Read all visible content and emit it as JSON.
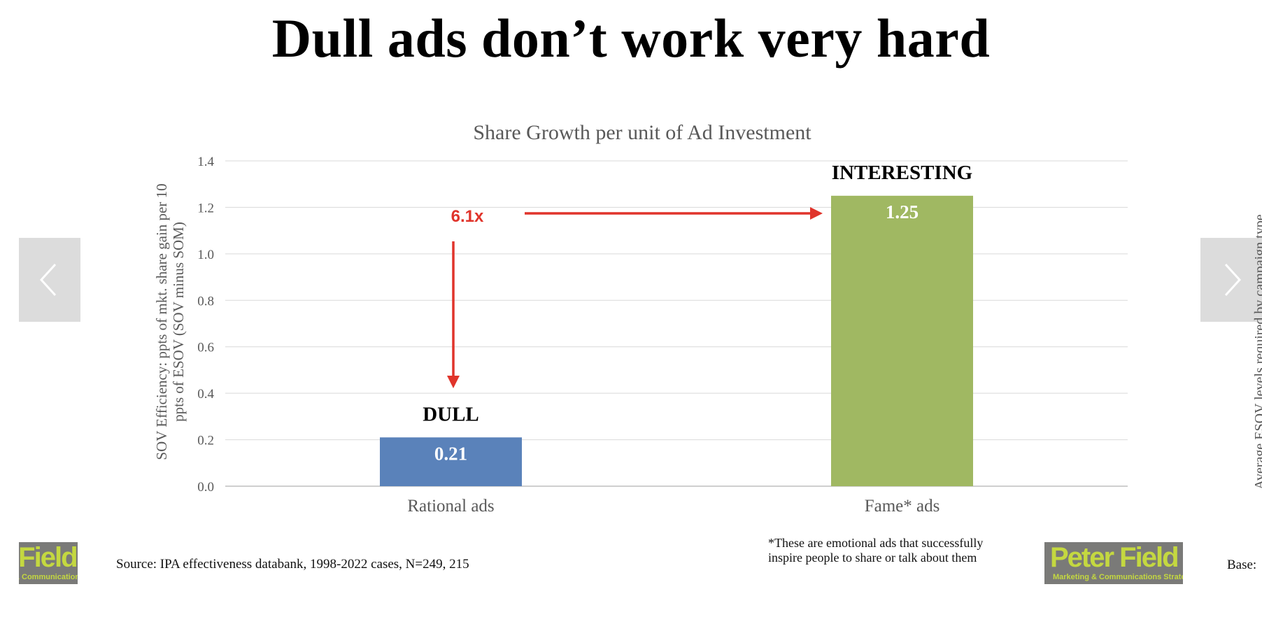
{
  "slide": {
    "title": "Dull ads don’t work very hard",
    "source": "Source: IPA effectiveness databank, 1998-2022 cases, N=249, 215",
    "footnote_line1": "*These are emotional ads that successfully",
    "footnote_line2": "inspire people to share or talk about them",
    "base_label": "Base:",
    "side_text": "Average ESOV levels required by campaign type"
  },
  "navigation": {
    "prev_icon": "chevron-left-icon",
    "next_icon": "chevron-right-icon"
  },
  "logos": {
    "left_name": "Peter Field",
    "left_tagline": "Marketing & Communications Strategy",
    "right_name": "Peter Field",
    "right_tagline": "Marketing & Communications Strategy"
  },
  "chart_data": {
    "type": "bar",
    "title": "Share Growth per unit of Ad Investment",
    "xlabel": "",
    "ylabel": "SOV Efficiency: ppts of mkt. share gain per 10 ppts of ESOV (SOV minus SOM)",
    "ylabel_line1": "SOV Efficiency: ppts of mkt. share gain per 10",
    "ylabel_line2": "ppts of ESOV (SOV minus SOM)",
    "categories": [
      "Rational ads",
      "Fame* ads"
    ],
    "values": [
      0.21,
      1.25
    ],
    "data_labels": [
      "0.21",
      "1.25"
    ],
    "bar_annotations": [
      "DULL",
      "INTERESTING"
    ],
    "bar_colors": [
      "#5a82ba",
      "#a0b862"
    ],
    "ylim": [
      0,
      1.4
    ],
    "yticks": [
      "0.0",
      "0.2",
      "0.4",
      "0.6",
      "0.8",
      "1.0",
      "1.2",
      "1.4"
    ],
    "grid": true,
    "legend": "none",
    "multiplier_label": "6.1x",
    "annotation_color": "#e0342b"
  }
}
